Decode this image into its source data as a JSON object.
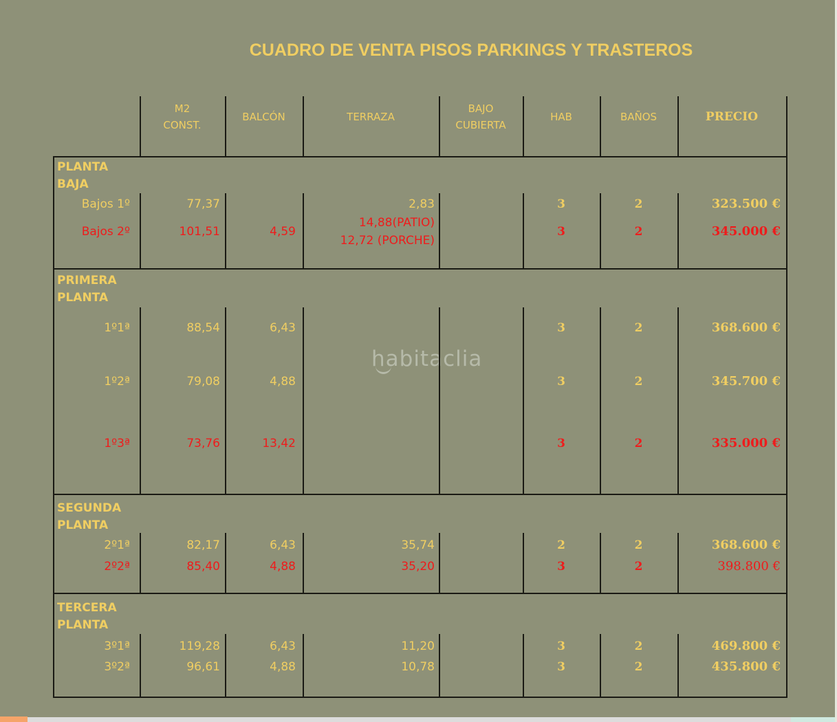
{
  "title": "CUADRO DE VENTA PISOS PARKINGS Y TRASTEROS",
  "watermark": "habitaclia",
  "colors": {
    "background": "#8e9178",
    "yellow": "#f0ce62",
    "red": "#ee1c1c",
    "line": "#1a1a14",
    "watermark": "#b6baa9",
    "scroll_track": "#dcdcdc",
    "scroll_thumb": "#f5a469",
    "scroll_corner": "#cfe9e0",
    "edge": "#e4e7dd"
  },
  "chart_data": {
    "type": "table",
    "title": "CUADRO DE VENTA PISOS PARKINGS Y TRASTEROS",
    "columns": [
      "M2\nCONST.",
      "BALCÓN",
      "TERRAZA",
      "BAJO\nCUBIERTA",
      "HAB",
      "BAÑOS",
      "PRECIO"
    ],
    "sections": [
      {
        "name": "PLANTA\nBAJA",
        "rows": [
          {
            "label": "Bajos 1º",
            "m2": "77,37",
            "balcon": "",
            "terraza": "2,83",
            "terraza2": "",
            "bajo_cubierta": "",
            "hab": "3",
            "banos": "2",
            "precio": "323.500 €",
            "color": "yellow"
          },
          {
            "label": "Bajos 2º",
            "m2": "101,51",
            "balcon": "4,59",
            "terraza": "14,88(PATIO)",
            "terraza2": "12,72 (PORCHE)",
            "bajo_cubierta": "",
            "hab": "3",
            "banos": "2",
            "precio": "345.000 €",
            "color": "red"
          }
        ]
      },
      {
        "name": "PRIMERA\nPLANTA",
        "rows": [
          {
            "label": "1º1ª",
            "m2": "88,54",
            "balcon": "6,43",
            "terraza": "",
            "terraza2": "",
            "bajo_cubierta": "",
            "hab": "3",
            "banos": "2",
            "precio": "368.600 €",
            "color": "yellow"
          },
          {
            "label": "1º2ª",
            "m2": "79,08",
            "balcon": "4,88",
            "terraza": "",
            "terraza2": "",
            "bajo_cubierta": "",
            "hab": "3",
            "banos": "2",
            "precio": "345.700 €",
            "color": "yellow"
          },
          {
            "label": "1º3ª",
            "m2": "73,76",
            "balcon": "13,42",
            "terraza": "",
            "terraza2": "",
            "bajo_cubierta": "",
            "hab": "3",
            "banos": "2",
            "precio": "335.000 €",
            "color": "red"
          }
        ]
      },
      {
        "name": "SEGUNDA\nPLANTA",
        "rows": [
          {
            "label": "2º1ª",
            "m2": "82,17",
            "balcon": "6,43",
            "terraza": "35,74",
            "terraza2": "",
            "bajo_cubierta": "",
            "hab": "2",
            "banos": "2",
            "precio": "368.600 €",
            "color": "yellow"
          },
          {
            "label": "2º2ª",
            "m2": "85,40",
            "balcon": "4,88",
            "terraza": "35,20",
            "terraza2": "",
            "bajo_cubierta": "",
            "hab": "3",
            "banos": "2",
            "precio": "398.800 €",
            "color": "red",
            "precio_weight": "normal"
          }
        ]
      },
      {
        "name": "TERCERA\nPLANTA",
        "rows": [
          {
            "label": "3º1ª",
            "m2": "119,28",
            "balcon": "6,43",
            "terraza": "11,20",
            "terraza2": "",
            "bajo_cubierta": "",
            "hab": "3",
            "banos": "2",
            "precio": "469.800 €",
            "color": "yellow"
          },
          {
            "label": "3º2ª",
            "m2": "96,61",
            "balcon": "4,88",
            "terraza": "10,78",
            "terraza2": "",
            "bajo_cubierta": "",
            "hab": "3",
            "banos": "2",
            "precio": "435.800 €",
            "color": "yellow"
          }
        ]
      }
    ]
  }
}
